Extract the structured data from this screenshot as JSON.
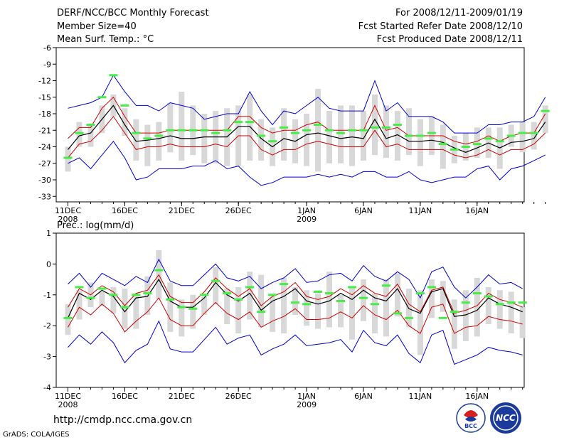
{
  "header": {
    "title": "DERF/NCC/BCC Monthly Forecast",
    "member_size": "Member Size=40",
    "period": "For 2008/12/11-2009/01/19",
    "started": "Fcst Started Refer Date 2008/12/10",
    "produced": "Fcst Produced Date 2008/12/11"
  },
  "footer": {
    "url": "http://cmdp.ncc.cma.gov.cn",
    "credit": "GrADS: COLA/IGES",
    "logo_bcc": "BCC",
    "logo_ncc": "NCC"
  },
  "colors": {
    "mean": "#000000",
    "spread": "#cc0000",
    "extreme": "#0000cc",
    "box": "#d8d8d8",
    "obs": "#44ee44"
  },
  "chart_data": [
    {
      "type": "line",
      "title": "Mean Surf. Temp.: °C",
      "x_labels": [
        {
          "day": 1,
          "text": "11DEC",
          "sub": "2008"
        },
        {
          "day": 6,
          "text": "16DEC"
        },
        {
          "day": 11,
          "text": "21DEC"
        },
        {
          "day": 16,
          "text": "26DEC"
        },
        {
          "day": 22,
          "text": "1JAN",
          "sub": "2009"
        },
        {
          "day": 27,
          "text": "6JAN"
        },
        {
          "day": 32,
          "text": "11JAN"
        },
        {
          "day": 37,
          "text": "16JAN"
        }
      ],
      "ylim": [
        -34,
        -6
      ],
      "yticks": [
        -33,
        -30,
        -27,
        -24,
        -21,
        -18,
        -15,
        -12,
        -9,
        -6
      ],
      "series": [
        {
          "name": "ensemble mean",
          "values": [
            -24.5,
            -22,
            -21.5,
            -19,
            -16.5,
            -20,
            -23,
            -22.8,
            -22.5,
            -22,
            -22.5,
            -22.5,
            -22.2,
            -22.2,
            -22.2,
            -20.3,
            -20.3,
            -22.5,
            -24,
            -22.5,
            -23,
            -21.8,
            -21.5,
            -22,
            -22.5,
            -22.2,
            -22.5,
            -19,
            -22.5,
            -21.8,
            -23,
            -23,
            -22.8,
            -23.2,
            -24.2,
            -25,
            -24.2,
            -23.3,
            -24.2,
            -23.2,
            -23,
            -22.5,
            -19.5
          ]
        },
        {
          "name": "upper spread",
          "values": [
            -22.5,
            -20.5,
            -20.5,
            -17,
            -15,
            -18.5,
            -21.5,
            -21.5,
            -21.5,
            -21,
            -21,
            -21,
            -21,
            -21,
            -21,
            -18.5,
            -18.5,
            -20.5,
            -21.5,
            -21,
            -21,
            -20,
            -19.5,
            -21,
            -21,
            -21,
            -21,
            -16.5,
            -21,
            -20.5,
            -22,
            -22,
            -22,
            -22,
            -23,
            -23.5,
            -23,
            -22,
            -23,
            -22,
            -21.5,
            -21.5,
            -18
          ]
        },
        {
          "name": "lower spread",
          "values": [
            -26,
            -23.5,
            -23,
            -21,
            -18.5,
            -21.5,
            -24.5,
            -24,
            -24,
            -23.5,
            -24,
            -24,
            -24,
            -23.5,
            -24,
            -22,
            -22,
            -24.5,
            -25.5,
            -24.5,
            -24.5,
            -23.5,
            -23,
            -23.5,
            -24,
            -24,
            -24,
            -21,
            -24,
            -23.5,
            -24.5,
            -24.5,
            -24.5,
            -24.5,
            -25.5,
            -26,
            -25.5,
            -24.5,
            -25.5,
            -24.5,
            -24.5,
            -23.5,
            -21.5
          ]
        },
        {
          "name": "ensemble max",
          "values": [
            -17,
            -16.5,
            -16,
            -15,
            -11,
            -14,
            -16.5,
            -16.5,
            -17.5,
            -16,
            -16.5,
            -17,
            -19,
            -18.5,
            -18,
            -18,
            -14,
            -17.5,
            -20,
            -17.5,
            -18,
            -16.5,
            -15,
            -17,
            -17.5,
            -17.5,
            -17.5,
            -12,
            -17.5,
            -16,
            -18.5,
            -18.5,
            -18.5,
            -19.5,
            -21.5,
            -21.5,
            -21.5,
            -20,
            -20,
            -19.5,
            -19.5,
            -18.5,
            -15
          ]
        },
        {
          "name": "ensemble min",
          "values": [
            -27,
            -26,
            -28,
            -25.5,
            -23,
            -26,
            -30,
            -29.5,
            -28,
            -28,
            -28,
            -27.5,
            -27.5,
            -26.5,
            -28,
            -27.5,
            -29.5,
            -31,
            -30.5,
            -29.5,
            -29.5,
            -29.5,
            -29,
            -29.5,
            -29,
            -29.5,
            -28.5,
            -28.5,
            -29.5,
            -29.5,
            -28.5,
            -30,
            -30.5,
            -30,
            -29.5,
            -29.5,
            -28,
            -27.5,
            -30,
            -28,
            -27.5,
            -26.5,
            -25.5
          ]
        },
        {
          "name": "observed",
          "values": [
            -26,
            -21.5,
            -20,
            -15,
            -11,
            -16.5,
            -21.5,
            -22.5,
            -22,
            -21,
            -21,
            -21,
            -21,
            -21.5,
            -21,
            -19.5,
            -19.5,
            -22,
            -23,
            -20.5,
            -21.5,
            -21,
            -20,
            -21,
            -21.5,
            -21,
            -21,
            -20.5,
            -20.5,
            -20,
            -22,
            -22,
            -21.5,
            -23.5,
            -24.5,
            -24,
            -23.5,
            -22.5,
            -23,
            -22,
            -21.5,
            -21.5,
            -17.5
          ]
        },
        {
          "name": "box top",
          "values": [
            -24,
            -19.5,
            -20,
            -16.5,
            -14.5,
            -17,
            -19,
            -20,
            -19.5,
            -16,
            -14,
            -16.5,
            -18,
            -17.5,
            -17,
            -16.5,
            -14.5,
            -19,
            -20.5,
            -17,
            -19,
            -18,
            -13.5,
            -17.5,
            -16.5,
            -16.5,
            -17.5,
            -14.5,
            -16.5,
            -17.5,
            -17,
            -19,
            -18.5,
            -20,
            -22,
            -21.5,
            -20.5,
            -20.5,
            -20.5,
            -20,
            -19.5,
            -19.5,
            -16.5
          ]
        },
        {
          "name": "box bottom",
          "values": [
            -28.5,
            -24,
            -24,
            -21.5,
            -18.5,
            -22,
            -26.5,
            -27.5,
            -26.5,
            -25,
            -26.5,
            -25.5,
            -27,
            -27,
            -27.5,
            -27.5,
            -26.5,
            -26.5,
            -27.5,
            -26.5,
            -27,
            -27.5,
            -28.5,
            -27,
            -27,
            -27.5,
            -26.5,
            -25.5,
            -26,
            -26.5,
            -25.5,
            -27.5,
            -25.5,
            -28,
            -27,
            -26.5,
            -26,
            -26,
            -28,
            -24,
            -25,
            -24.5,
            -21.5
          ]
        }
      ]
    },
    {
      "type": "line",
      "title": "Prec.: log(mm/d)",
      "x_labels": [
        {
          "day": 1,
          "text": "11DEC",
          "sub": "2008"
        },
        {
          "day": 6,
          "text": "16DEC"
        },
        {
          "day": 11,
          "text": "21DEC"
        },
        {
          "day": 16,
          "text": "26DEC"
        },
        {
          "day": 22,
          "text": "1JAN",
          "sub": "2009"
        },
        {
          "day": 27,
          "text": "6JAN"
        },
        {
          "day": 32,
          "text": "11JAN"
        },
        {
          "day": 37,
          "text": "16JAN"
        }
      ],
      "ylim": [
        -4,
        1
      ],
      "yticks": [
        -4,
        -3,
        -2,
        -1,
        0,
        1
      ],
      "series": [
        {
          "name": "ensemble mean",
          "values": [
            -1.75,
            -0.95,
            -1.15,
            -0.85,
            -1.05,
            -1.55,
            -1.1,
            -1.05,
            -0.5,
            -1.2,
            -1.4,
            -1.4,
            -1.1,
            -0.6,
            -1,
            -1.2,
            -0.95,
            -1.5,
            -1.2,
            -1.05,
            -0.8,
            -1.2,
            -1.3,
            -1.2,
            -0.95,
            -1.15,
            -0.85,
            -1.1,
            -1.2,
            -0.8,
            -1.45,
            -1.6,
            -0.9,
            -0.8,
            -1.7,
            -1.65,
            -1.5,
            -1.1,
            -1.3,
            -1.4,
            -1.55
          ]
        },
        {
          "name": "upper spread",
          "values": [
            -1.4,
            -0.8,
            -1,
            -0.7,
            -0.9,
            -1.35,
            -0.95,
            -0.85,
            -0.35,
            -1.05,
            -1.25,
            -1.25,
            -0.9,
            -0.45,
            -0.8,
            -1.05,
            -0.8,
            -1.35,
            -1.05,
            -0.9,
            -0.6,
            -1.05,
            -1.15,
            -1.05,
            -0.8,
            -1,
            -0.7,
            -0.95,
            -1.05,
            -0.65,
            -1.3,
            -1.55,
            -0.85,
            -0.75,
            -1.6,
            -1.5,
            -1.35,
            -0.95,
            -1.15,
            -1.25,
            -1.4
          ]
        },
        {
          "name": "lower spread",
          "values": [
            -2.05,
            -1.4,
            -1.65,
            -1.3,
            -1.6,
            -2.2,
            -1.85,
            -1.55,
            -1.1,
            -1.8,
            -2,
            -2,
            -1.6,
            -1.25,
            -1.6,
            -1.8,
            -1.55,
            -2.05,
            -1.85,
            -1.7,
            -1.45,
            -1.8,
            -1.8,
            -1.75,
            -1.55,
            -1.75,
            -1.35,
            -1.65,
            -1.8,
            -1.5,
            -2,
            -2.25,
            -1.4,
            -1.3,
            -2.25,
            -2.05,
            -2,
            -1.7,
            -1.8,
            -1.85,
            -1.95
          ]
        },
        {
          "name": "ensemble max",
          "values": [
            -0.65,
            -0.3,
            -0.75,
            -0.3,
            -0.5,
            -0.7,
            -0.4,
            -0.6,
            0.15,
            -0.55,
            -0.7,
            -0.7,
            -0.35,
            0,
            -0.45,
            -0.55,
            -0.4,
            -0.8,
            -0.6,
            -0.45,
            -0.15,
            -0.6,
            -0.55,
            -0.35,
            -0.3,
            -0.55,
            -0.05,
            -0.4,
            -0.55,
            -0.25,
            -0.5,
            -1.1,
            -0.25,
            -0.1,
            -0.75,
            -1.1,
            -0.75,
            -0.35,
            -0.65,
            -0.6,
            -0.8
          ]
        },
        {
          "name": "ensemble min",
          "values": [
            -2.7,
            -2.3,
            -2.6,
            -2.2,
            -2.55,
            -3.2,
            -2.8,
            -2.6,
            -1.85,
            -2.75,
            -2.85,
            -2.85,
            -2.45,
            -2.05,
            -2.6,
            -2.4,
            -2.3,
            -2.95,
            -2.75,
            -2.6,
            -2.3,
            -2.65,
            -2.6,
            -2.55,
            -2.45,
            -2.85,
            -2.15,
            -2.55,
            -2.65,
            -2.3,
            -2.9,
            -3.2,
            -2.3,
            -2.15,
            -3.25,
            -3.1,
            -2.95,
            -2.7,
            -2.8,
            -2.85,
            -2.95
          ]
        },
        {
          "name": "observed",
          "values": [
            -1.75,
            -0.75,
            -1.1,
            -0.8,
            -1,
            -1.4,
            -1,
            -0.95,
            -0.2,
            -1.15,
            -1.4,
            -1.45,
            -1,
            -0.55,
            -0.95,
            -1.15,
            -0.75,
            -1.55,
            -1,
            -0.65,
            -1.25,
            -1.3,
            -0.9,
            -0.95,
            -1.2,
            -0.75,
            -1.1,
            -1.3,
            -0.7,
            -1.6,
            -1.75,
            -0.95,
            -0.75,
            -1.75,
            -1.55,
            -1.25,
            -0.95,
            -1.05,
            -1.3,
            -1.25,
            -1.25
          ]
        },
        {
          "name": "box top",
          "values": [
            -1.3,
            -0.85,
            -0.6,
            -0.9,
            -0.75,
            -0.8,
            -0.95,
            -0.4,
            0.45,
            -0.6,
            -1.15,
            -1,
            -1.05,
            -0.1,
            -0.8,
            -0.75,
            -0.25,
            -0.35,
            -1.05,
            -0.45,
            -0.75,
            -0.85,
            -0.95,
            -0.25,
            -1,
            -0.75,
            -0.5,
            -0.95,
            -0.5,
            -0.3,
            -0.8,
            -0.85,
            -0.5,
            -0.55,
            -1.15,
            -0.85,
            -0.45,
            -0.75,
            -0.85,
            -0.9,
            -1.4
          ]
        },
        {
          "name": "box bottom",
          "values": [
            -2.3,
            -1.8,
            -1.4,
            -1.35,
            -1.6,
            -2.1,
            -2.1,
            -1.65,
            -1.15,
            -2.2,
            -2.35,
            -2.1,
            -1.65,
            -1.3,
            -1.95,
            -2.25,
            -1.8,
            -2.05,
            -2.2,
            -2.25,
            -1.65,
            -2,
            -2.1,
            -2.05,
            -2.05,
            -2.45,
            -1.85,
            -2.25,
            -2.35,
            -1.7,
            -2.05,
            -2.95,
            -1.75,
            -1.55,
            -2.75,
            -2.5,
            -2.35,
            -1.95,
            -2.1,
            -2.25,
            -2.4
          ]
        }
      ]
    }
  ]
}
